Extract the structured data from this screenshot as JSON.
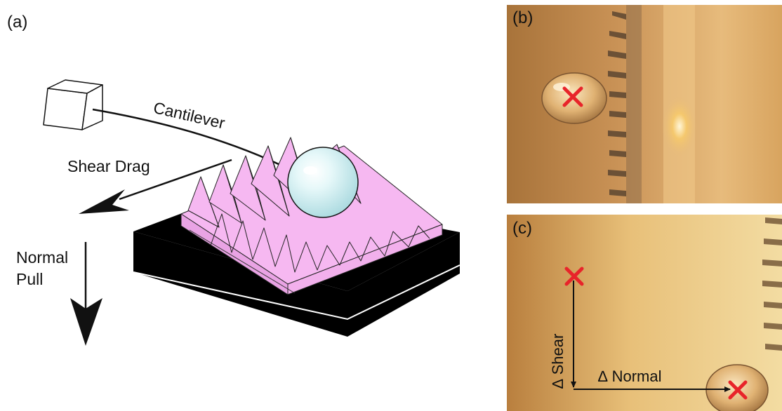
{
  "panels": {
    "a": {
      "label": "(a)"
    },
    "b": {
      "label": "(b)"
    },
    "c": {
      "label": "(c)"
    }
  },
  "schematic": {
    "cantilever_label": "Cantilever",
    "shear_drag_label": "Shear Drag",
    "normal_label": "Normal",
    "pull_label": "Pull"
  },
  "photo_c": {
    "delta_shear_label": "∆ Shear",
    "delta_normal_label": "∆ Normal"
  },
  "colors": {
    "ridges": "#f6b8f1",
    "base": "#000000",
    "sphere": "#dff5f7",
    "marker": "#e8242a",
    "photo_bg": "#d7a35b"
  }
}
